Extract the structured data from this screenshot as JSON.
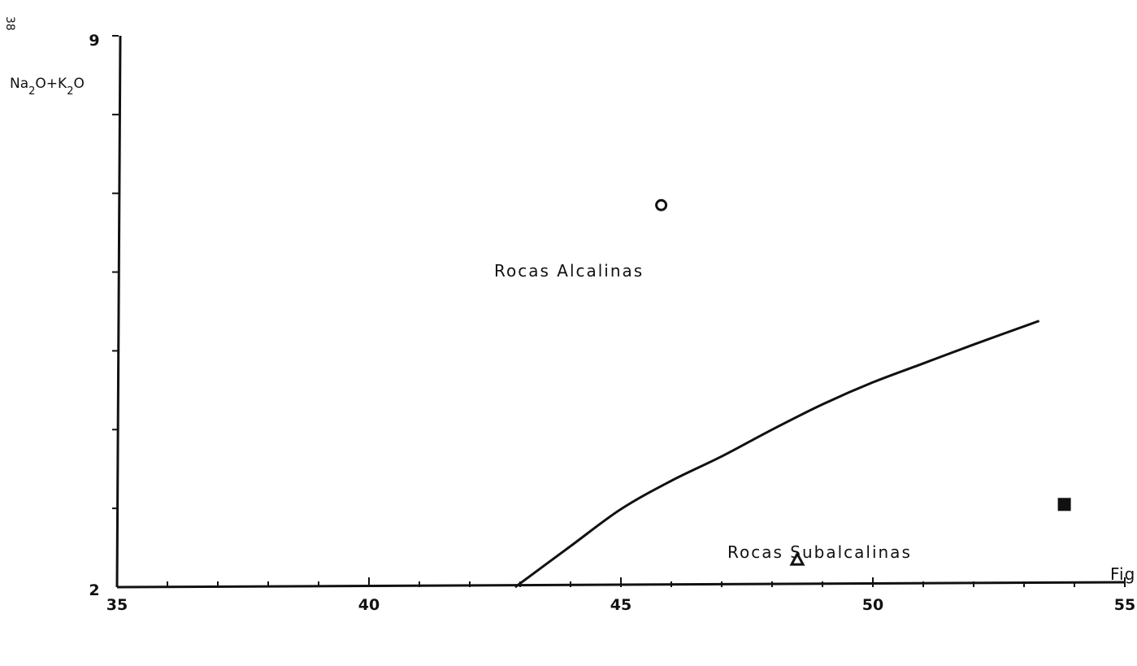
{
  "page_number": "38",
  "chart_data": {
    "type": "scatter",
    "xlim": [
      35,
      55
    ],
    "ylim": [
      2,
      9
    ],
    "x_ticks": [
      35,
      40,
      45,
      50,
      55
    ],
    "x_tick_labels": [
      "35",
      "40",
      "45",
      "50",
      "55"
    ],
    "y_tick_labels": [
      "2",
      "9"
    ],
    "x_minor_step": 1,
    "y_minor_step": 1,
    "ylabel_parts": [
      "Na",
      "2",
      "O+K",
      "2",
      "O"
    ],
    "boundary_curve": {
      "x": [
        42.9,
        44.0,
        45.0,
        46.0,
        47.0,
        48.0,
        49.0,
        50.0,
        51.0,
        52.0,
        53.3
      ],
      "y": [
        2.0,
        2.52,
        2.99,
        3.35,
        3.66,
        4.0,
        4.32,
        4.6,
        4.84,
        5.08,
        5.38
      ]
    },
    "region_labels": [
      "Rocas Alcalinas",
      "Rocas Subalcalinas"
    ],
    "points": [
      {
        "x": 45.8,
        "y": 6.85,
        "marker": "circle-open"
      },
      {
        "x": 48.5,
        "y": 2.35,
        "marker": "triangle-open"
      },
      {
        "x": 53.8,
        "y": 3.05,
        "marker": "square-filled"
      }
    ],
    "caption_fragment": "Fig"
  }
}
